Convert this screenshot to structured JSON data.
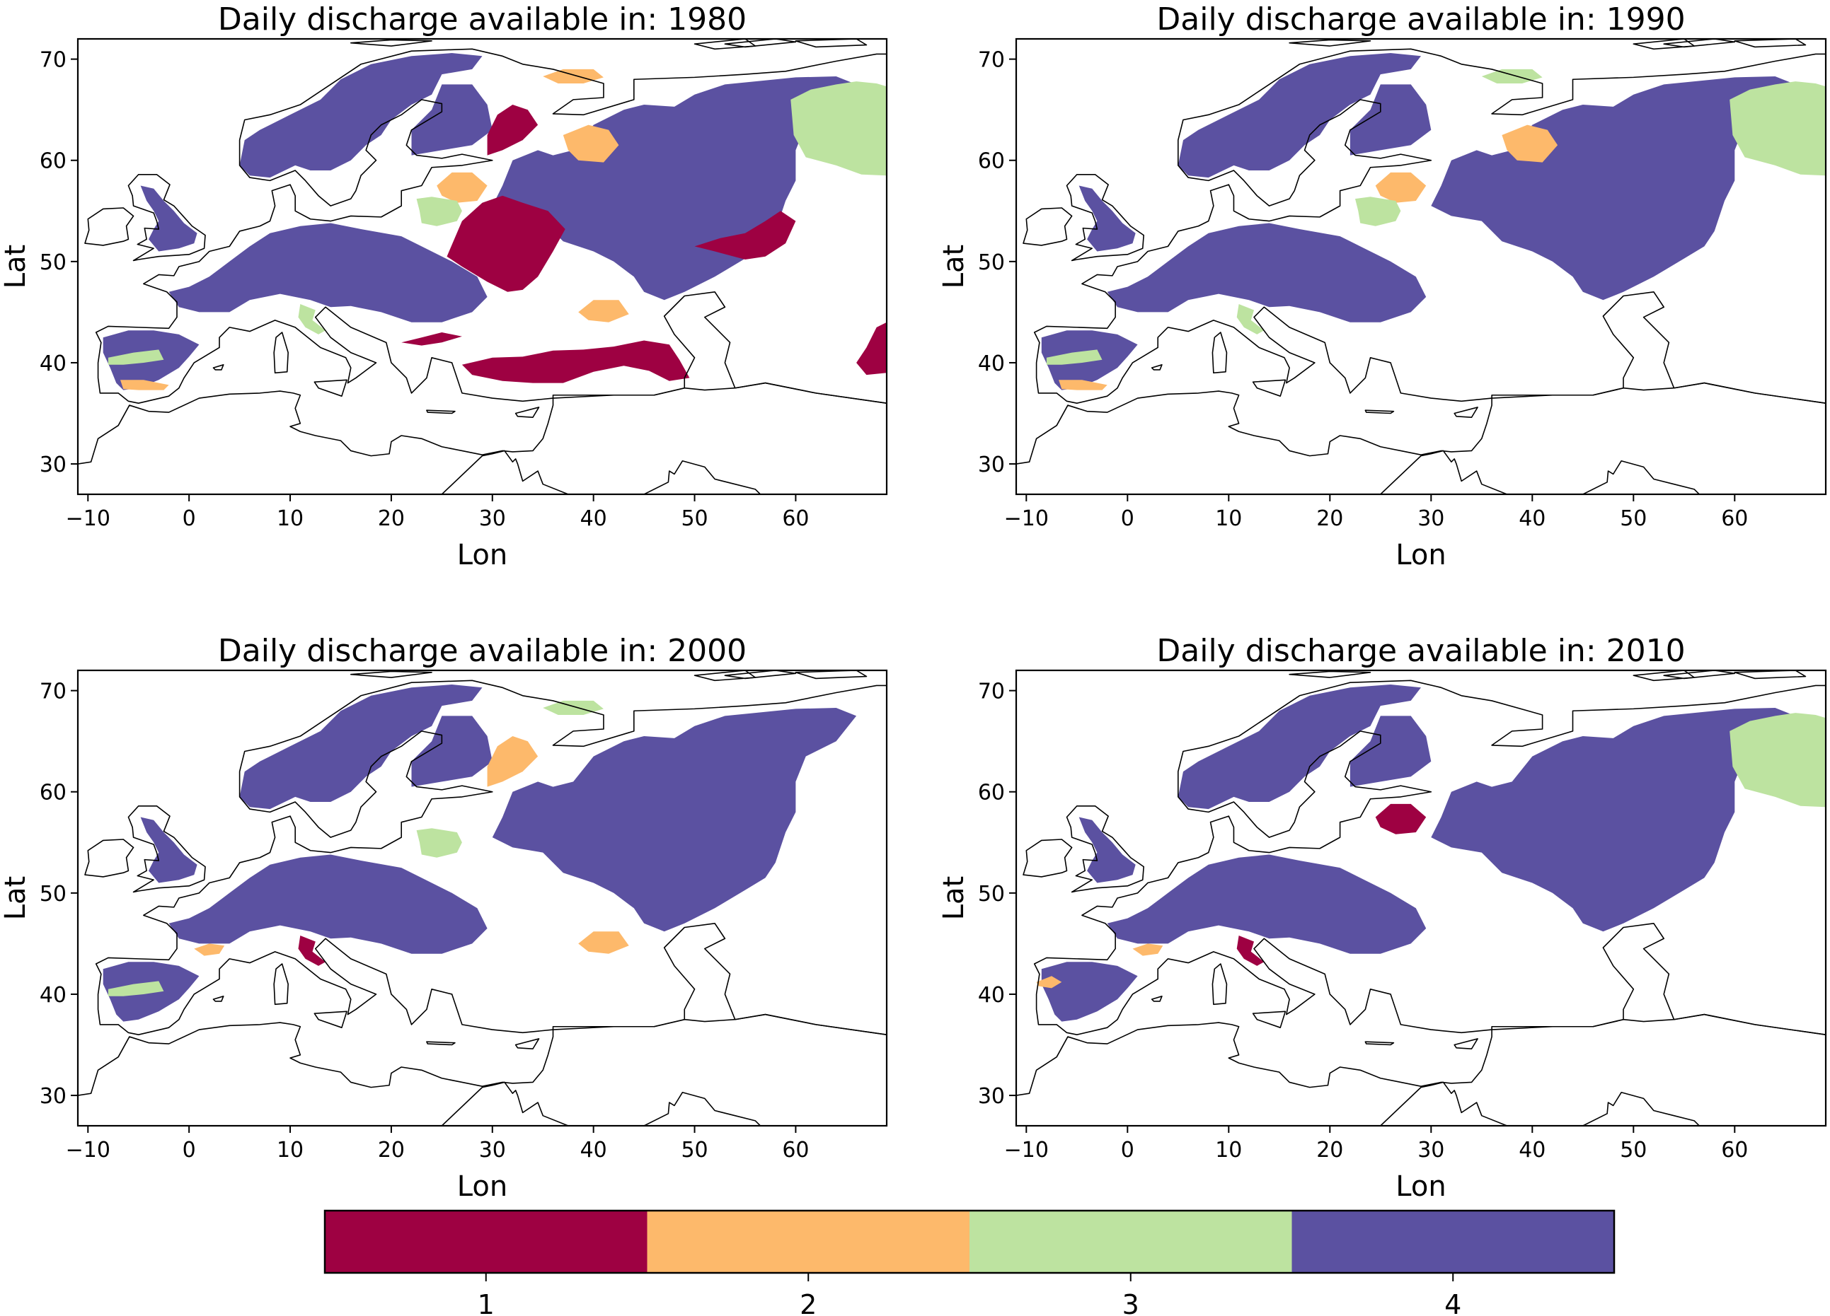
{
  "panels": [
    {
      "title": "Daily discharge available in: 1980",
      "xlabel": "Lon",
      "ylabel": "Lat",
      "regions": [
        {
          "name": "scandinavia-baltic-basin",
          "category": 4
        },
        {
          "name": "volga-basin",
          "category": 4
        },
        {
          "name": "central-europe-basin",
          "category": 4
        },
        {
          "name": "iberian-basin",
          "category": 4
        },
        {
          "name": "british-isles-basins",
          "category": 4
        },
        {
          "name": "karelia-basin",
          "category": 1
        },
        {
          "name": "dnieper-basin",
          "category": 1
        },
        {
          "name": "ural-basin",
          "category": 1
        },
        {
          "name": "anatolia-basin",
          "category": 1
        },
        {
          "name": "east-edge-basin",
          "category": 1
        },
        {
          "name": "lower-danube-basin",
          "category": 1
        },
        {
          "name": "northern-dvina-basin",
          "category": 2
        },
        {
          "name": "kola-basin",
          "category": 2
        },
        {
          "name": "baltic-states-basin",
          "category": 2
        },
        {
          "name": "caucasus-basin",
          "category": 2
        },
        {
          "name": "iberian-south-basin",
          "category": 2
        },
        {
          "name": "west-siberia-basin",
          "category": 3
        },
        {
          "name": "belarus-basin",
          "category": 3
        },
        {
          "name": "iberian-center-basin",
          "category": 3
        },
        {
          "name": "italy-basin",
          "category": 3
        }
      ]
    },
    {
      "title": "Daily discharge available in: 1990",
      "xlabel": "Lon",
      "ylabel": "Lat",
      "regions": [
        {
          "name": "scandinavia-baltic-basin",
          "category": 4
        },
        {
          "name": "volga-basin",
          "category": 4
        },
        {
          "name": "central-europe-basin",
          "category": 4
        },
        {
          "name": "iberian-basin",
          "category": 4
        },
        {
          "name": "british-isles-basins",
          "category": 4
        },
        {
          "name": "northern-dvina-basin",
          "category": 2
        },
        {
          "name": "baltic-states-basin",
          "category": 2
        },
        {
          "name": "iberian-south-basin",
          "category": 2
        },
        {
          "name": "west-siberia-basin",
          "category": 3
        },
        {
          "name": "belarus-basin",
          "category": 3
        },
        {
          "name": "kola-basin",
          "category": 3
        },
        {
          "name": "iberian-center-basin",
          "category": 3
        },
        {
          "name": "italy-basin",
          "category": 3
        }
      ]
    },
    {
      "title": "Daily discharge available in: 2000",
      "xlabel": "Lon",
      "ylabel": "Lat",
      "regions": [
        {
          "name": "scandinavia-baltic-basin",
          "category": 4
        },
        {
          "name": "volga-basin",
          "category": 4
        },
        {
          "name": "central-europe-basin",
          "category": 4
        },
        {
          "name": "iberian-basin",
          "category": 4
        },
        {
          "name": "british-isles-basins",
          "category": 4
        },
        {
          "name": "belarus-basin",
          "category": 3
        },
        {
          "name": "iberian-center-basin",
          "category": 3
        },
        {
          "name": "kola-basin",
          "category": 3
        },
        {
          "name": "caucasus-basin",
          "category": 2
        },
        {
          "name": "karelia-basin",
          "category": 2
        },
        {
          "name": "france-south-basin",
          "category": 2
        },
        {
          "name": "italy-basin",
          "category": 1
        }
      ]
    },
    {
      "title": "Daily discharge available in: 2010",
      "xlabel": "Lon",
      "ylabel": "Lat",
      "regions": [
        {
          "name": "scandinavia-baltic-basin",
          "category": 4
        },
        {
          "name": "volga-basin",
          "category": 4
        },
        {
          "name": "central-europe-basin",
          "category": 4
        },
        {
          "name": "iberian-basin",
          "category": 4
        },
        {
          "name": "british-isles-basins",
          "category": 4
        },
        {
          "name": "west-siberia-basin",
          "category": 3
        },
        {
          "name": "baltic-states-basin",
          "category": 1
        },
        {
          "name": "italy-basin",
          "category": 1
        },
        {
          "name": "france-south-basin",
          "category": 2
        },
        {
          "name": "iberian-west-basin",
          "category": 2
        }
      ]
    }
  ],
  "axes": {
    "xlim": [
      -11,
      69
    ],
    "ylim": [
      27,
      72
    ],
    "xticks": [
      -10,
      0,
      10,
      20,
      30,
      40,
      50,
      60
    ],
    "yticks": [
      30,
      40,
      50,
      60,
      70
    ]
  },
  "colorbar": {
    "ticks": [
      "1",
      "2",
      "3",
      "4"
    ],
    "colors": [
      "#9e0142",
      "#fdb96b",
      "#bde3a0",
      "#5b51a1"
    ]
  },
  "coast_color": "#000000"
}
